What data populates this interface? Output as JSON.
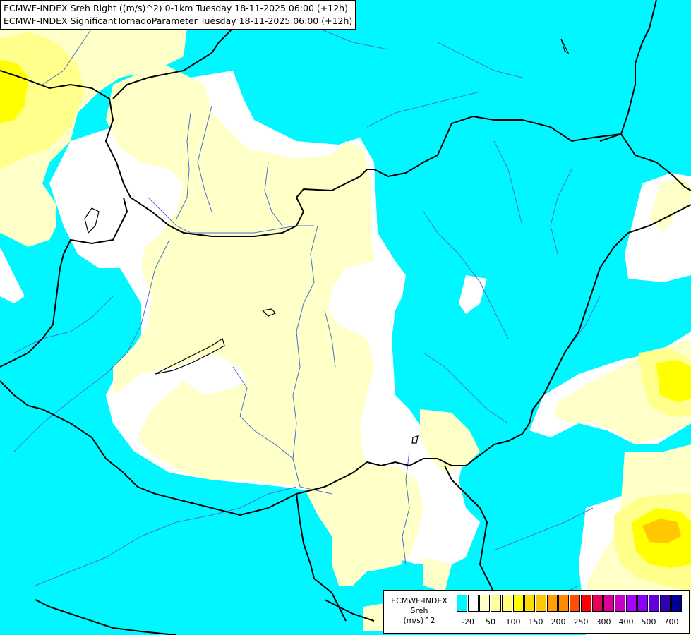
{
  "title": {
    "line1": "ECMWF-INDEX Sreh Right ((m/s)^2) 0-1km Tuesday 18-11-2025 06:00 (+12h)",
    "line2": "ECMWF-INDEX SignificantTornadoParameter Tuesday 18-11-2025 06:00 (+12h)"
  },
  "legend": {
    "title_line1": "ECMWF-INDEX",
    "title_line2": "Sreh",
    "title_line3": "(m/s)^2",
    "colors": [
      "#00f7ff",
      "#ffffff",
      "#ffffc8",
      "#ffffa0",
      "#ffff78",
      "#ffff00",
      "#ffdc00",
      "#ffc800",
      "#ffa000",
      "#ff8c00",
      "#ff5000",
      "#ff0000",
      "#e6005a",
      "#dc0096",
      "#c800c8",
      "#aa00ff",
      "#8c00ff",
      "#6400dc",
      "#3200b4",
      "#000096"
    ],
    "labels": [
      "-20",
      "50",
      "100",
      "150",
      "200",
      "250",
      "300",
      "400",
      "500",
      "700"
    ]
  },
  "colors": {
    "cyan": "#00f7ff",
    "white": "#ffffff",
    "pale_yellow": "#ffffc8",
    "light_yellow": "#ffff8c",
    "yellow": "#ffff00",
    "orange": "#ffc800",
    "border": "#000000",
    "river": "#4a6fd0"
  }
}
